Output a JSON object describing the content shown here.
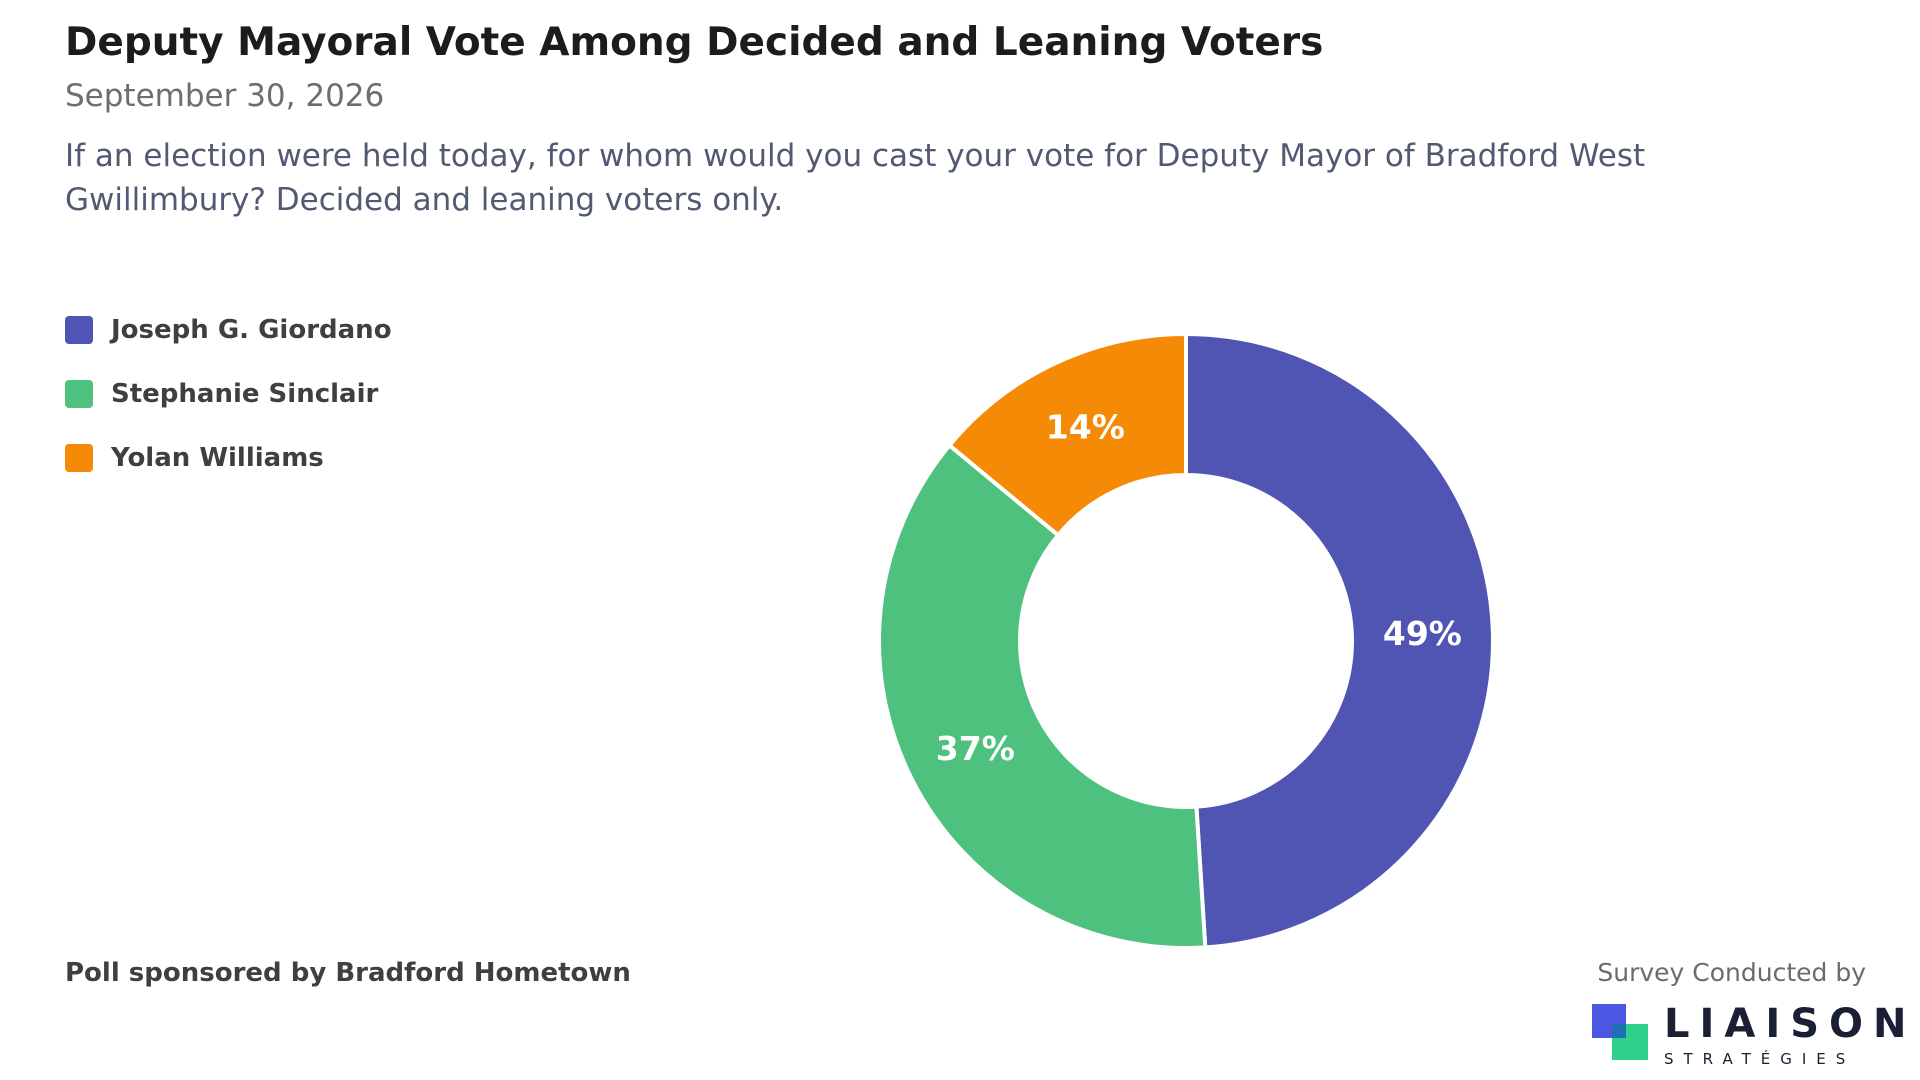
{
  "title": "Deputy Mayoral Vote Among Decided and Leaning Voters",
  "date": "September 30, 2026",
  "question": "If an election were held today, for whom would you cast your vote for Deputy Mayor of Bradford West Gwillimbury? Decided and leaning voters only.",
  "sponsor": "Poll sponsored by Bradford Hometown",
  "credit": "Survey Conducted by",
  "logo": {
    "name": "LIAISON",
    "sub": "STRATÉGIES"
  },
  "chart_data": {
    "type": "pie",
    "variant": "donut",
    "title": "Deputy Mayoral Vote Among Decided and Leaning Voters",
    "categories": [
      "Joseph G. Giordano",
      "Stephanie Sinclair",
      "Yolan Williams"
    ],
    "values": [
      49,
      37,
      14
    ],
    "labels": [
      "49%",
      "37%",
      "14%"
    ],
    "colors": [
      "#5055b4",
      "#4fc17e",
      "#f58a07"
    ],
    "legend_position": "top-left"
  }
}
